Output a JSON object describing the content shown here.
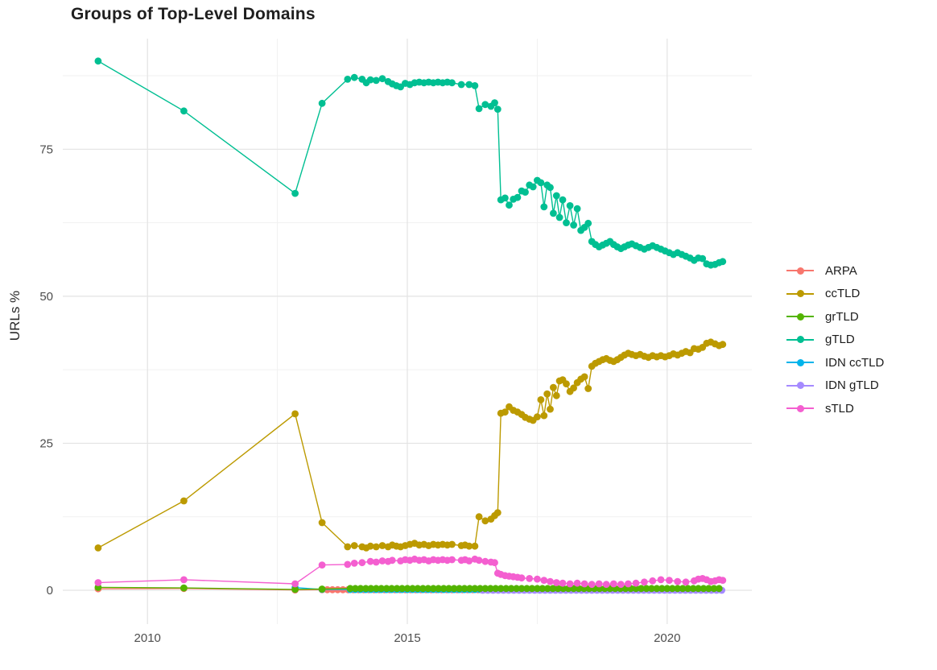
{
  "title": "Groups of Top-Level Domains",
  "y_axis": {
    "label": "URLs %",
    "ticks": [
      0,
      25,
      50,
      75
    ]
  },
  "x_axis": {
    "ticks": [
      2010,
      2015,
      2020
    ]
  },
  "legend": {
    "position": "right",
    "items": [
      "ARPA",
      "ccTLD",
      "grTLD",
      "gTLD",
      "IDN ccTLD",
      "IDN gTLD",
      "sTLD"
    ]
  },
  "colors": {
    "ARPA": "#F8766D",
    "ccTLD": "#BC9A00",
    "grTLD": "#53B400",
    "gTLD": "#00BF92",
    "IDN ccTLD": "#00B4EB",
    "IDN gTLD": "#A58AFF",
    "sTLD": "#F45FD0",
    "grid_major": "#E3E3E3",
    "grid_minor": "#F1F1F1",
    "background": "#FFFFFF"
  },
  "chart_data": {
    "type": "line",
    "title": "Groups of Top-Level Domains",
    "xlabel": "",
    "ylabel": "URLs %",
    "xlim": [
      2008.37,
      2021.63
    ],
    "ylim": [
      -5.75,
      93.8
    ],
    "x_ticks": [
      2010,
      2015,
      2020
    ],
    "y_ticks": [
      0,
      25,
      50,
      75
    ],
    "grid": {
      "major_x": [
        2010,
        2015,
        2020
      ],
      "minor_x": [
        2012.5,
        2017.5
      ],
      "major_y": [
        0,
        25,
        50,
        75
      ],
      "minor_y": [
        12.5,
        37.5,
        62.5,
        87.5
      ]
    },
    "legend_position": "right",
    "legend_order": [
      "ARPA",
      "ccTLD",
      "grTLD",
      "gTLD",
      "IDN ccTLD",
      "IDN gTLD",
      "sTLD"
    ],
    "series": [
      {
        "name": "ARPA",
        "color": "#F8766D",
        "points": [
          [
            2009.05,
            0.25
          ],
          [
            2010.7,
            0.3
          ],
          [
            2012.84,
            0.05
          ]
        ],
        "flat": {
          "from": 2013.36,
          "to": 2021.02,
          "step": 0.1,
          "value": 0.1
        }
      },
      {
        "name": "IDN ccTLD",
        "color": "#00B4EB",
        "points": [
          [
            2012.84,
            0.45
          ],
          [
            2013.36,
            0.15
          ]
        ],
        "flat": {
          "from": 2013.9,
          "to": 2021.02,
          "step": 0.1,
          "value": 0.12
        }
      },
      {
        "name": "IDN gTLD",
        "color": "#A58AFF",
        "points": [],
        "flat": {
          "from": 2016.45,
          "to": 2021.05,
          "step": 0.1,
          "value": 0.0
        }
      },
      {
        "name": "grTLD",
        "color": "#53B400",
        "points": [
          [
            2009.05,
            0.5
          ],
          [
            2010.7,
            0.4
          ],
          [
            2012.84,
            0.15
          ],
          [
            2013.36,
            0.2
          ]
        ],
        "flat": {
          "from": 2013.9,
          "to": 2021.07,
          "step": 0.1,
          "value": 0.3
        }
      },
      {
        "name": "ccTLD",
        "color": "#BC9A00",
        "points": [
          [
            2009.05,
            7.2
          ],
          [
            2010.7,
            15.2
          ],
          [
            2012.84,
            30.0
          ],
          [
            2013.36,
            11.5
          ],
          [
            2013.85,
            7.4
          ],
          [
            2013.98,
            7.6
          ],
          [
            2014.13,
            7.4
          ],
          [
            2014.21,
            7.2
          ],
          [
            2014.29,
            7.5
          ],
          [
            2014.4,
            7.4
          ],
          [
            2014.52,
            7.6
          ],
          [
            2014.63,
            7.4
          ],
          [
            2014.71,
            7.7
          ],
          [
            2014.79,
            7.5
          ],
          [
            2014.87,
            7.4
          ],
          [
            2014.96,
            7.6
          ],
          [
            2015.05,
            7.8
          ],
          [
            2015.14,
            8.0
          ],
          [
            2015.23,
            7.7
          ],
          [
            2015.32,
            7.8
          ],
          [
            2015.41,
            7.6
          ],
          [
            2015.5,
            7.8
          ],
          [
            2015.59,
            7.7
          ],
          [
            2015.68,
            7.8
          ],
          [
            2015.77,
            7.7
          ],
          [
            2015.86,
            7.8
          ],
          [
            2016.04,
            7.6
          ],
          [
            2016.11,
            7.7
          ],
          [
            2016.19,
            7.5
          ],
          [
            2016.3,
            7.5
          ],
          [
            2016.38,
            12.5
          ],
          [
            2016.5,
            11.8
          ],
          [
            2016.61,
            12.1
          ],
          [
            2016.68,
            12.7
          ],
          [
            2016.74,
            13.2
          ],
          [
            2016.8,
            30.1
          ],
          [
            2016.88,
            30.3
          ],
          [
            2016.96,
            31.2
          ],
          [
            2017.04,
            30.6
          ],
          [
            2017.12,
            30.3
          ],
          [
            2017.2,
            29.9
          ],
          [
            2017.27,
            29.4
          ],
          [
            2017.35,
            29.1
          ],
          [
            2017.42,
            28.9
          ],
          [
            2017.5,
            29.5
          ],
          [
            2017.57,
            32.4
          ],
          [
            2017.63,
            29.7
          ],
          [
            2017.69,
            33.4
          ],
          [
            2017.75,
            30.8
          ],
          [
            2017.81,
            34.5
          ],
          [
            2017.87,
            33.1
          ],
          [
            2017.93,
            35.6
          ],
          [
            2017.99,
            35.8
          ],
          [
            2018.06,
            35.1
          ],
          [
            2018.13,
            33.8
          ],
          [
            2018.2,
            34.4
          ],
          [
            2018.27,
            35.3
          ],
          [
            2018.34,
            35.9
          ],
          [
            2018.41,
            36.3
          ],
          [
            2018.48,
            34.3
          ],
          [
            2018.55,
            38.1
          ],
          [
            2018.62,
            38.6
          ],
          [
            2018.69,
            38.9
          ],
          [
            2018.76,
            39.2
          ],
          [
            2018.83,
            39.4
          ],
          [
            2018.9,
            39.1
          ],
          [
            2018.97,
            38.9
          ],
          [
            2019.04,
            39.2
          ],
          [
            2019.11,
            39.6
          ],
          [
            2019.18,
            40.0
          ],
          [
            2019.25,
            40.3
          ],
          [
            2019.32,
            40.1
          ],
          [
            2019.4,
            39.9
          ],
          [
            2019.48,
            40.1
          ],
          [
            2019.56,
            39.8
          ],
          [
            2019.64,
            39.6
          ],
          [
            2019.72,
            39.9
          ],
          [
            2019.8,
            39.7
          ],
          [
            2019.88,
            39.9
          ],
          [
            2019.96,
            39.7
          ],
          [
            2020.04,
            39.9
          ],
          [
            2020.12,
            40.2
          ],
          [
            2020.2,
            40.0
          ],
          [
            2020.28,
            40.3
          ],
          [
            2020.36,
            40.6
          ],
          [
            2020.44,
            40.4
          ],
          [
            2020.52,
            41.1
          ],
          [
            2020.6,
            41.0
          ],
          [
            2020.68,
            41.3
          ],
          [
            2020.76,
            42.0
          ],
          [
            2020.84,
            42.2
          ],
          [
            2020.92,
            41.9
          ],
          [
            2021.0,
            41.6
          ],
          [
            2021.07,
            41.8
          ]
        ]
      },
      {
        "name": "gTLD",
        "color": "#00BF92",
        "points": [
          [
            2009.05,
            90.0
          ],
          [
            2010.7,
            81.5
          ],
          [
            2012.84,
            67.5
          ],
          [
            2013.36,
            82.8
          ],
          [
            2013.85,
            86.9
          ],
          [
            2013.98,
            87.2
          ],
          [
            2014.13,
            86.9
          ],
          [
            2014.21,
            86.3
          ],
          [
            2014.29,
            86.8
          ],
          [
            2014.4,
            86.7
          ],
          [
            2014.52,
            87.0
          ],
          [
            2014.63,
            86.5
          ],
          [
            2014.71,
            86.1
          ],
          [
            2014.79,
            85.8
          ],
          [
            2014.87,
            85.6
          ],
          [
            2014.96,
            86.2
          ],
          [
            2015.05,
            86.0
          ],
          [
            2015.14,
            86.3
          ],
          [
            2015.23,
            86.4
          ],
          [
            2015.32,
            86.3
          ],
          [
            2015.41,
            86.4
          ],
          [
            2015.5,
            86.3
          ],
          [
            2015.59,
            86.4
          ],
          [
            2015.68,
            86.3
          ],
          [
            2015.77,
            86.4
          ],
          [
            2015.86,
            86.3
          ],
          [
            2016.04,
            86.0
          ],
          [
            2016.19,
            86.0
          ],
          [
            2016.3,
            85.8
          ],
          [
            2016.38,
            81.9
          ],
          [
            2016.5,
            82.6
          ],
          [
            2016.61,
            82.3
          ],
          [
            2016.68,
            82.9
          ],
          [
            2016.74,
            81.8
          ],
          [
            2016.8,
            66.4
          ],
          [
            2016.88,
            66.7
          ],
          [
            2016.96,
            65.5
          ],
          [
            2017.04,
            66.5
          ],
          [
            2017.12,
            66.8
          ],
          [
            2017.2,
            67.9
          ],
          [
            2017.27,
            67.7
          ],
          [
            2017.35,
            68.9
          ],
          [
            2017.42,
            68.6
          ],
          [
            2017.5,
            69.7
          ],
          [
            2017.57,
            69.3
          ],
          [
            2017.63,
            65.2
          ],
          [
            2017.69,
            68.9
          ],
          [
            2017.75,
            68.5
          ],
          [
            2017.81,
            64.1
          ],
          [
            2017.87,
            67.1
          ],
          [
            2017.93,
            63.4
          ],
          [
            2017.99,
            66.4
          ],
          [
            2018.06,
            62.5
          ],
          [
            2018.13,
            65.4
          ],
          [
            2018.2,
            62.1
          ],
          [
            2018.27,
            64.9
          ],
          [
            2018.34,
            61.2
          ],
          [
            2018.41,
            61.7
          ],
          [
            2018.48,
            62.4
          ],
          [
            2018.55,
            59.3
          ],
          [
            2018.62,
            58.8
          ],
          [
            2018.69,
            58.4
          ],
          [
            2018.76,
            58.7
          ],
          [
            2018.83,
            59.0
          ],
          [
            2018.9,
            59.3
          ],
          [
            2018.97,
            58.8
          ],
          [
            2019.04,
            58.4
          ],
          [
            2019.11,
            58.1
          ],
          [
            2019.18,
            58.4
          ],
          [
            2019.25,
            58.7
          ],
          [
            2019.32,
            58.9
          ],
          [
            2019.4,
            58.6
          ],
          [
            2019.48,
            58.3
          ],
          [
            2019.56,
            58.0
          ],
          [
            2019.64,
            58.3
          ],
          [
            2019.72,
            58.6
          ],
          [
            2019.8,
            58.3
          ],
          [
            2019.88,
            58.0
          ],
          [
            2019.96,
            57.7
          ],
          [
            2020.04,
            57.4
          ],
          [
            2020.12,
            57.1
          ],
          [
            2020.2,
            57.4
          ],
          [
            2020.28,
            57.1
          ],
          [
            2020.36,
            56.8
          ],
          [
            2020.44,
            56.5
          ],
          [
            2020.52,
            56.1
          ],
          [
            2020.6,
            56.5
          ],
          [
            2020.68,
            56.4
          ],
          [
            2020.76,
            55.5
          ],
          [
            2020.84,
            55.3
          ],
          [
            2020.92,
            55.4
          ],
          [
            2021.0,
            55.7
          ],
          [
            2021.07,
            55.9
          ]
        ]
      },
      {
        "name": "sTLD",
        "color": "#F45FD0",
        "points": [
          [
            2009.05,
            1.3
          ],
          [
            2010.7,
            1.8
          ],
          [
            2012.84,
            1.1
          ],
          [
            2013.36,
            4.3
          ],
          [
            2013.85,
            4.4
          ],
          [
            2013.98,
            4.6
          ],
          [
            2014.13,
            4.7
          ],
          [
            2014.29,
            4.9
          ],
          [
            2014.4,
            4.8
          ],
          [
            2014.52,
            5.0
          ],
          [
            2014.63,
            4.9
          ],
          [
            2014.71,
            5.1
          ],
          [
            2014.87,
            5.0
          ],
          [
            2014.96,
            5.2
          ],
          [
            2015.05,
            5.1
          ],
          [
            2015.14,
            5.3
          ],
          [
            2015.23,
            5.1
          ],
          [
            2015.32,
            5.2
          ],
          [
            2015.41,
            5.0
          ],
          [
            2015.5,
            5.2
          ],
          [
            2015.59,
            5.1
          ],
          [
            2015.68,
            5.2
          ],
          [
            2015.77,
            5.1
          ],
          [
            2015.86,
            5.2
          ],
          [
            2016.04,
            5.1
          ],
          [
            2016.11,
            5.2
          ],
          [
            2016.19,
            5.0
          ],
          [
            2016.3,
            5.3
          ],
          [
            2016.38,
            5.1
          ],
          [
            2016.5,
            4.9
          ],
          [
            2016.61,
            4.8
          ],
          [
            2016.68,
            4.7
          ],
          [
            2016.74,
            2.9
          ],
          [
            2016.8,
            2.7
          ],
          [
            2016.88,
            2.5
          ],
          [
            2016.96,
            2.4
          ],
          [
            2017.04,
            2.3
          ],
          [
            2017.12,
            2.2
          ],
          [
            2017.2,
            2.1
          ],
          [
            2017.35,
            2.0
          ],
          [
            2017.5,
            1.9
          ],
          [
            2017.63,
            1.7
          ],
          [
            2017.75,
            1.5
          ],
          [
            2017.87,
            1.3
          ],
          [
            2017.99,
            1.2
          ],
          [
            2018.13,
            1.1
          ],
          [
            2018.27,
            1.2
          ],
          [
            2018.41,
            1.1
          ],
          [
            2018.55,
            1.0
          ],
          [
            2018.69,
            1.1
          ],
          [
            2018.83,
            1.0
          ],
          [
            2018.97,
            1.1
          ],
          [
            2019.11,
            1.0
          ],
          [
            2019.25,
            1.1
          ],
          [
            2019.4,
            1.2
          ],
          [
            2019.56,
            1.4
          ],
          [
            2019.72,
            1.6
          ],
          [
            2019.88,
            1.8
          ],
          [
            2020.04,
            1.7
          ],
          [
            2020.2,
            1.5
          ],
          [
            2020.36,
            1.4
          ],
          [
            2020.52,
            1.6
          ],
          [
            2020.6,
            1.9
          ],
          [
            2020.68,
            2.0
          ],
          [
            2020.76,
            1.8
          ],
          [
            2020.84,
            1.5
          ],
          [
            2020.92,
            1.6
          ],
          [
            2021.0,
            1.8
          ],
          [
            2021.07,
            1.7
          ]
        ]
      }
    ]
  }
}
